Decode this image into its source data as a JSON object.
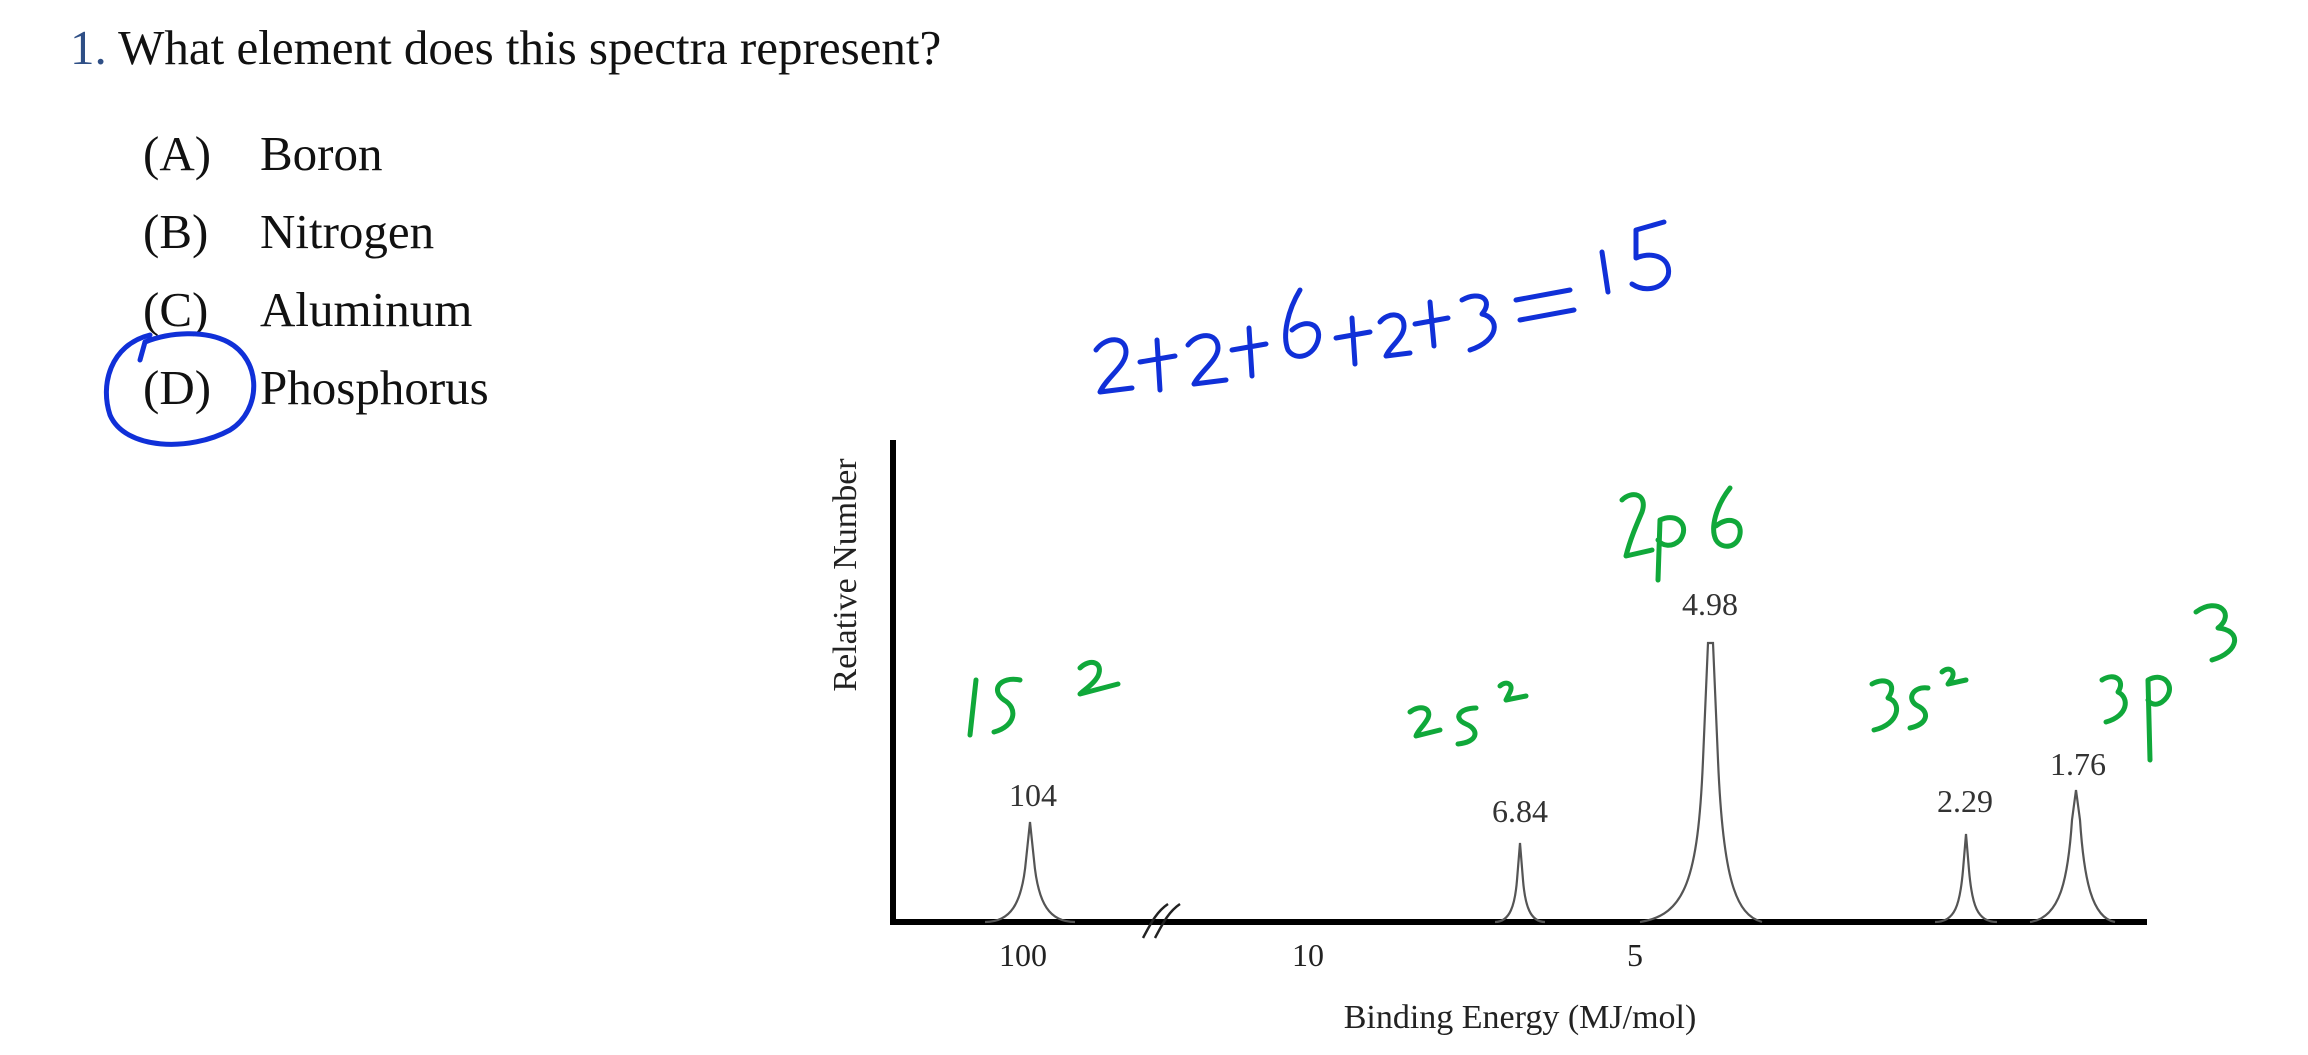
{
  "question": {
    "number": "1.",
    "text": "What element does this spectra represent?",
    "options": [
      {
        "letter": "(A)",
        "text": "Boron"
      },
      {
        "letter": "(B)",
        "text": "Nitrogen"
      },
      {
        "letter": "(C)",
        "text": "Aluminum"
      },
      {
        "letter": "(D)",
        "text": "Phosphorus"
      }
    ]
  },
  "chart_data": {
    "type": "line",
    "title": "",
    "xlabel": "Binding Energy (MJ/mol)",
    "ylabel": "Relative Number",
    "x_tick_labels": [
      "100",
      "10",
      "5"
    ],
    "axis_break": true,
    "grid": false,
    "peaks": [
      {
        "binding_energy": 104,
        "label": "104",
        "relative_height": 2
      },
      {
        "binding_energy": 6.84,
        "label": "6.84",
        "relative_height": 2
      },
      {
        "binding_energy": 4.98,
        "label": "4.98",
        "relative_height": 6
      },
      {
        "binding_energy": 2.29,
        "label": "2.29",
        "relative_height": 2
      },
      {
        "binding_energy": 1.76,
        "label": "1.76",
        "relative_height": 3
      }
    ]
  },
  "annotations": {
    "pen_blue": "#1030d8",
    "pen_green": "#10a83a",
    "sum_text": "2+2+6+2+3=15",
    "selected_option": "(D)",
    "peak_notes": [
      "1s²",
      "2s²",
      "2p6",
      "3s²",
      "3p3"
    ]
  }
}
